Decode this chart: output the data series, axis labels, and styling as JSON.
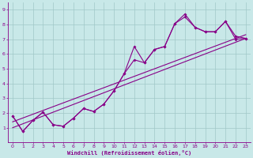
{
  "xlabel": "Windchill (Refroidissement éolien,°C)",
  "xlim": [
    -0.5,
    23.5
  ],
  "ylim": [
    0,
    9.5
  ],
  "xticks": [
    0,
    1,
    2,
    3,
    4,
    5,
    6,
    7,
    8,
    9,
    10,
    11,
    12,
    13,
    14,
    15,
    16,
    17,
    18,
    19,
    20,
    21,
    22,
    23
  ],
  "yticks": [
    1,
    2,
    3,
    4,
    5,
    6,
    7,
    8,
    9
  ],
  "bg_color": "#c8e8e8",
  "grid_color": "#a0c8c8",
  "line_color": "#880088",
  "line1_x": [
    0,
    1,
    2,
    3,
    4,
    5,
    6,
    7,
    8,
    9,
    10,
    11,
    12,
    13,
    14,
    15,
    16,
    17,
    18,
    19,
    20,
    21,
    22,
    23
  ],
  "line1_y": [
    1.8,
    0.75,
    1.5,
    2.05,
    1.2,
    1.1,
    1.65,
    2.3,
    2.1,
    2.6,
    3.5,
    4.65,
    6.5,
    5.4,
    6.3,
    6.5,
    8.05,
    8.7,
    7.8,
    7.5,
    7.5,
    8.2,
    7.2,
    7.05
  ],
  "line2_x": [
    0,
    1,
    2,
    3,
    4,
    5,
    6,
    7,
    8,
    9,
    10,
    11,
    12,
    13,
    14,
    15,
    16,
    17,
    18,
    19,
    20,
    21,
    22,
    23
  ],
  "line2_y": [
    1.8,
    0.75,
    1.5,
    2.05,
    1.2,
    1.1,
    1.65,
    2.3,
    2.1,
    2.6,
    3.5,
    4.65,
    5.6,
    5.4,
    6.3,
    6.5,
    8.05,
    8.5,
    7.8,
    7.5,
    7.5,
    8.2,
    7.0,
    7.05
  ],
  "line3_x": [
    0,
    23
  ],
  "line3_y": [
    1.4,
    7.3
  ],
  "line4_x": [
    0,
    23
  ],
  "line4_y": [
    1.0,
    7.05
  ]
}
